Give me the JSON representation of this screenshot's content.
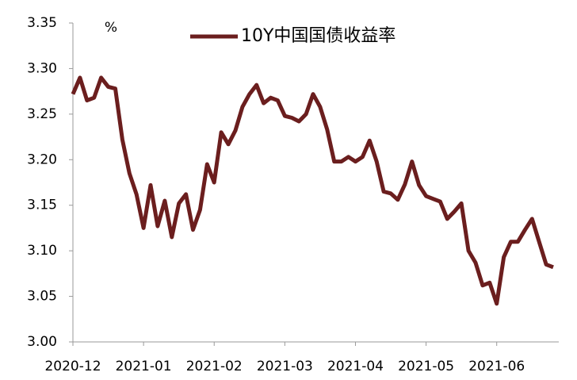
{
  "chart_data": {
    "type": "line",
    "unit": "%",
    "categories": [
      "2020-12",
      null,
      null,
      null,
      null,
      null,
      null,
      null,
      null,
      null,
      "2021-01",
      null,
      null,
      null,
      null,
      null,
      null,
      null,
      null,
      null,
      "2021-02",
      null,
      null,
      null,
      null,
      null,
      null,
      null,
      null,
      null,
      "2021-03",
      null,
      null,
      null,
      null,
      null,
      null,
      null,
      null,
      null,
      "2021-04",
      null,
      null,
      null,
      null,
      null,
      null,
      null,
      null,
      null,
      "2021-05",
      null,
      null,
      null,
      null,
      null,
      null,
      null,
      null,
      null,
      "2021-06",
      null,
      null,
      null,
      null,
      null,
      null,
      null,
      null
    ],
    "series": [
      {
        "name": "10Y中国国债收益率",
        "color": "#6b1e1e",
        "values": [
          3.272,
          3.29,
          3.265,
          3.268,
          3.29,
          3.28,
          3.278,
          3.222,
          3.185,
          3.162,
          3.125,
          3.172,
          3.127,
          3.155,
          3.115,
          3.152,
          3.162,
          3.123,
          3.145,
          3.195,
          3.175,
          3.23,
          3.217,
          3.232,
          3.258,
          3.272,
          3.282,
          3.262,
          3.268,
          3.265,
          3.248,
          3.246,
          3.242,
          3.25,
          3.272,
          3.258,
          3.233,
          3.198,
          3.198,
          3.203,
          3.198,
          3.203,
          3.221,
          3.198,
          3.165,
          3.163,
          3.156,
          3.173,
          3.198,
          3.172,
          3.16,
          3.157,
          3.154,
          3.135,
          3.143,
          3.152,
          3.1,
          3.087,
          3.062,
          3.065,
          3.042,
          3.093,
          3.11,
          3.11,
          3.123,
          3.135,
          3.11,
          3.085,
          3.082
        ]
      }
    ],
    "ylim": [
      3,
      3.35
    ],
    "yticks": [
      {
        "value": 3,
        "label": "3.00"
      },
      3.05,
      {
        "value": 3.1,
        "label": "3.10"
      },
      3.15,
      {
        "value": 3.2,
        "label": "3.20"
      },
      3.25,
      {
        "value": 3.3,
        "label": "3.30"
      },
      3.35
    ],
    "legend": "top",
    "grid": false
  }
}
